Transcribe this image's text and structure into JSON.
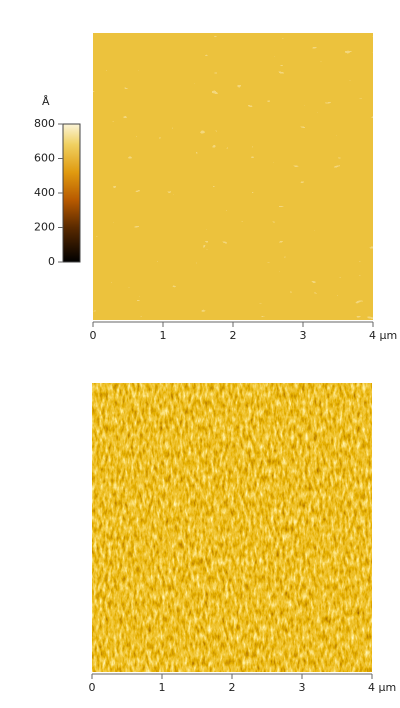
{
  "top_panel": {
    "colorbar": {
      "unit": "Å",
      "range": [
        0,
        800
      ],
      "ticks": [
        0,
        200,
        400,
        600,
        800
      ]
    },
    "x_axis": {
      "range": [
        0,
        4
      ],
      "ticks": [
        0,
        1,
        2,
        3,
        {
          "value": 4,
          "label": "4 µm"
        }
      ]
    }
  },
  "bottom_panel": {
    "x_axis": {
      "range": [
        0,
        4
      ],
      "ticks": [
        0,
        1,
        2,
        3,
        {
          "value": 4,
          "label": "4 µm"
        }
      ]
    }
  }
}
